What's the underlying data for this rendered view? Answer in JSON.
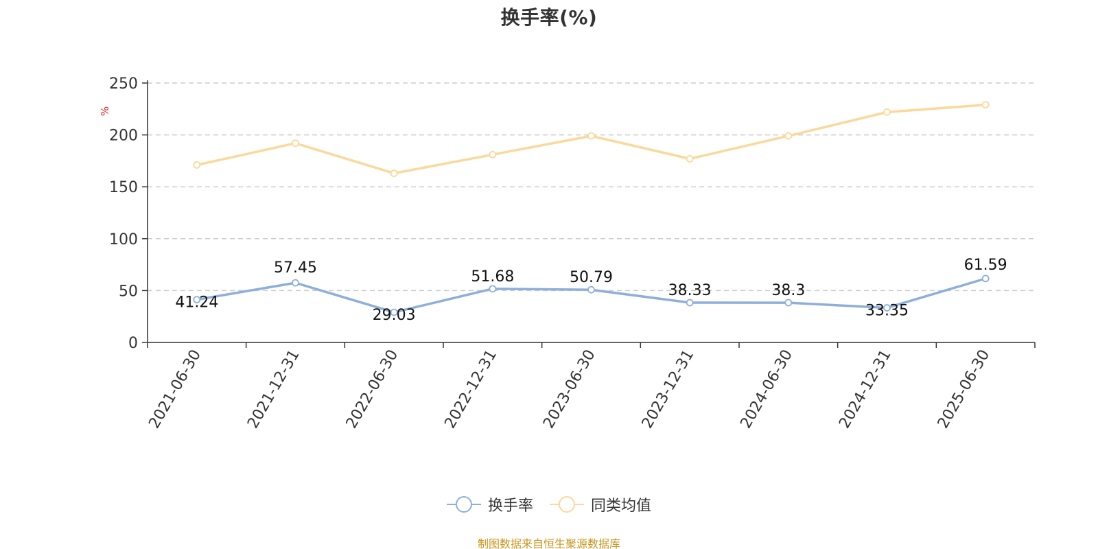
{
  "chart_data": {
    "type": "line",
    "title": "换手率(%)",
    "ylabel": "%",
    "xlabel": "",
    "ylim": [
      0,
      250
    ],
    "yticks": [
      0,
      50,
      100,
      150,
      200,
      250
    ],
    "grid": true,
    "legend_position": "bottom",
    "categories": [
      "2021-06-30",
      "2021-12-31",
      "2022-06-30",
      "2022-12-31",
      "2023-06-30",
      "2023-12-31",
      "2024-06-30",
      "2024-12-31",
      "2025-06-30"
    ],
    "series": [
      {
        "name": "换手率",
        "color": "#8eaedb",
        "values": [
          41.24,
          57.45,
          29.03,
          51.68,
          50.79,
          38.33,
          38.3,
          33.35,
          61.59
        ],
        "data_labels": [
          "41.24",
          "57.45",
          "29.03",
          "51.68",
          "50.79",
          "38.33",
          "38.3",
          "33.35",
          "61.59"
        ]
      },
      {
        "name": "同类均值",
        "color": "#fad99a",
        "values": [
          171,
          192,
          163,
          181,
          199,
          177,
          199,
          222,
          229
        ]
      }
    ]
  },
  "source_note": "制图数据来自恒生聚源数据库"
}
